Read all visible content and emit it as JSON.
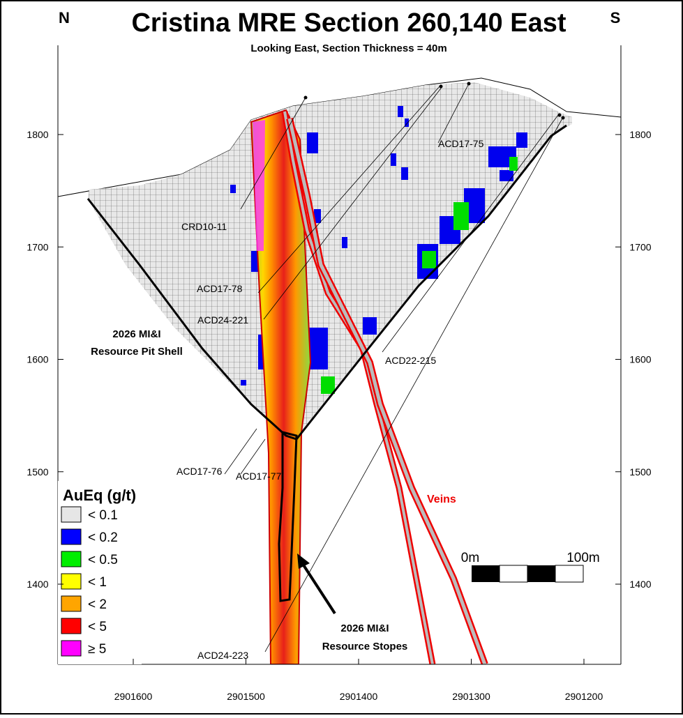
{
  "header": {
    "title": "Cristina MRE Section 260,140 East",
    "subtitle": "Looking East, Section Thickness = 40m",
    "left_direction": "N",
    "right_direction": "S"
  },
  "axes": {
    "elevation_ticks": [
      1400,
      1500,
      1600,
      1700,
      1800
    ],
    "northing_ticks": [
      2901600,
      2901500,
      2901400,
      2901300,
      2901200
    ]
  },
  "drill_holes": [
    "CRD10-11",
    "ACD17-78",
    "ACD24-221",
    "ACD17-75",
    "ACD22-215",
    "ACD17-76",
    "ACD17-77",
    "ACD24-223"
  ],
  "annotations": {
    "pit_shell": [
      "2026 MI&I",
      "Resource Pit Shell"
    ],
    "stopes": [
      "2026 MI&I",
      "Resource Stopes"
    ],
    "veins": "Veins"
  },
  "legend": {
    "title": "AuEq (g/t)",
    "entries": [
      {
        "label": "< 0.1",
        "color": "#e6e6e6"
      },
      {
        "label": "< 0.2",
        "color": "#0000ff"
      },
      {
        "label": "< 0.5",
        "color": "#00ee00"
      },
      {
        "label": "< 1",
        "color": "#ffff00"
      },
      {
        "label": "< 2",
        "color": "#ffa500"
      },
      {
        "label": "< 5",
        "color": "#ff0000"
      },
      {
        "label": "≥ 5",
        "color": "#ff00ff"
      }
    ]
  },
  "scale_bar": {
    "start": "0m",
    "end": "100m"
  }
}
